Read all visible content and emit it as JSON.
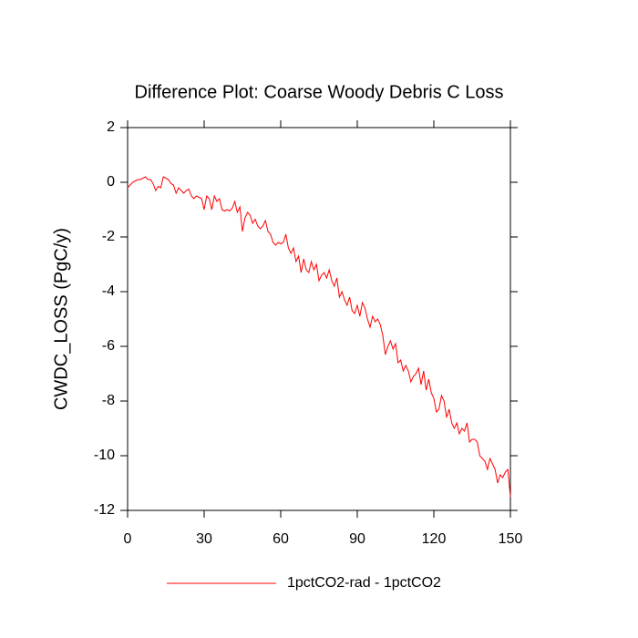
{
  "chart_data": {
    "type": "line",
    "title": "Difference Plot: Coarse Woody Debris C Loss",
    "ylabel": "CWDC_LOSS  (PgC/y)",
    "x": [
      0,
      1,
      2,
      3,
      4,
      5,
      6,
      7,
      8,
      9,
      10,
      11,
      12,
      13,
      14,
      15,
      16,
      17,
      18,
      19,
      20,
      21,
      22,
      23,
      24,
      25,
      26,
      27,
      28,
      29,
      30,
      31,
      32,
      33,
      34,
      35,
      36,
      37,
      38,
      39,
      40,
      41,
      42,
      43,
      44,
      45,
      46,
      47,
      48,
      49,
      50,
      51,
      52,
      53,
      54,
      55,
      56,
      57,
      58,
      59,
      60,
      61,
      62,
      63,
      64,
      65,
      66,
      67,
      68,
      69,
      70,
      71,
      72,
      73,
      74,
      75,
      76,
      77,
      78,
      79,
      80,
      81,
      82,
      83,
      84,
      85,
      86,
      87,
      88,
      89,
      90,
      91,
      92,
      93,
      94,
      95,
      96,
      97,
      98,
      99,
      100,
      101,
      102,
      103,
      104,
      105,
      106,
      107,
      108,
      109,
      110,
      111,
      112,
      113,
      114,
      115,
      116,
      117,
      118,
      119,
      120,
      121,
      122,
      123,
      124,
      125,
      126,
      127,
      128,
      129,
      130,
      131,
      132,
      133,
      134,
      135,
      136,
      137,
      138,
      139,
      140,
      141,
      142,
      143,
      144,
      145,
      146,
      147,
      148,
      149,
      150
    ],
    "series": [
      {
        "name": "1pctCO2-rad - 1pctCO2",
        "color": "#ff0000",
        "values": [
          -0.2,
          -0.1,
          0.0,
          0.05,
          0.1,
          0.1,
          0.15,
          0.2,
          0.1,
          0.1,
          -0.05,
          -0.3,
          -0.15,
          -0.2,
          0.2,
          0.15,
          0.1,
          -0.05,
          -0.1,
          -0.4,
          -0.2,
          -0.3,
          -0.4,
          -0.3,
          -0.25,
          -0.5,
          -0.6,
          -0.5,
          -0.55,
          -0.6,
          -1.0,
          -0.5,
          -0.6,
          -1.0,
          -0.5,
          -0.7,
          -0.6,
          -1.0,
          -1.05,
          -1.0,
          -1.05,
          -0.95,
          -0.7,
          -1.1,
          -0.9,
          -1.8,
          -1.3,
          -1.1,
          -1.2,
          -1.5,
          -1.35,
          -1.6,
          -1.7,
          -1.6,
          -1.4,
          -1.8,
          -1.9,
          -2.2,
          -2.3,
          -2.2,
          -2.25,
          -2.2,
          -1.9,
          -2.4,
          -2.6,
          -2.4,
          -2.9,
          -2.7,
          -3.3,
          -2.8,
          -3.2,
          -3.3,
          -2.9,
          -3.2,
          -3.0,
          -3.6,
          -3.4,
          -3.3,
          -3.5,
          -3.2,
          -3.6,
          -3.8,
          -3.5,
          -4.2,
          -4.0,
          -4.3,
          -4.5,
          -4.2,
          -4.7,
          -4.8,
          -4.5,
          -4.9,
          -4.4,
          -4.6,
          -5.0,
          -5.3,
          -4.9,
          -5.1,
          -5.0,
          -5.2,
          -5.6,
          -6.3,
          -6.0,
          -5.8,
          -6.1,
          -5.9,
          -6.6,
          -6.5,
          -6.9,
          -6.7,
          -6.9,
          -7.3,
          -7.1,
          -7.0,
          -6.8,
          -7.4,
          -6.9,
          -7.6,
          -7.2,
          -7.7,
          -7.9,
          -8.4,
          -8.3,
          -7.8,
          -8.0,
          -8.6,
          -8.3,
          -8.8,
          -9.0,
          -8.8,
          -9.2,
          -9.0,
          -9.1,
          -8.8,
          -9.5,
          -9.4,
          -9.4,
          -9.5,
          -10.0,
          -10.1,
          -10.2,
          -10.5,
          -10.1,
          -10.3,
          -10.5,
          -11.0,
          -10.7,
          -10.8,
          -10.6,
          -10.5,
          -11.5
        ]
      }
    ],
    "xlim": [
      0,
      150
    ],
    "xticks": [
      0,
      30,
      60,
      90,
      120,
      150
    ],
    "ylim": [
      -12,
      2
    ],
    "yticks": [
      -12,
      -10,
      -8,
      -6,
      -4,
      -2,
      0,
      2
    ]
  }
}
